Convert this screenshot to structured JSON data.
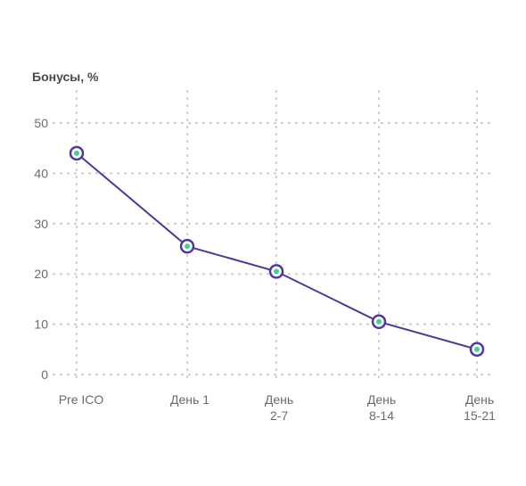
{
  "chart_data": {
    "type": "line",
    "title": "",
    "xlabel": "",
    "ylabel": "Бонусы, %",
    "categories": [
      [
        "Pre ICO"
      ],
      [
        "День 1"
      ],
      [
        "День",
        "2-7"
      ],
      [
        "День",
        "8-14"
      ],
      [
        "День",
        "15-21"
      ]
    ],
    "series": [
      {
        "values": [
          44,
          25.5,
          20.5,
          10.5,
          5
        ]
      }
    ],
    "yticks": [
      0,
      10,
      20,
      30,
      40,
      50
    ],
    "ylim": [
      0,
      50
    ],
    "grid": true,
    "colors": {
      "line": "#4b38a0",
      "marker_fill": "#3ecf9b",
      "grid": "#c8c8c8",
      "text": "#6b6b6b"
    }
  }
}
